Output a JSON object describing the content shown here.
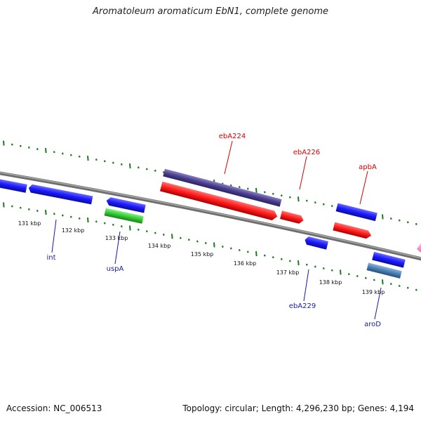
{
  "title": "Aromatoleum aromaticum EbN1, complete genome",
  "footer": {
    "accession": "Accession: NC_006513",
    "stats": "Topology: circular; Length: 4,296,230 bp; Genes: 4,194"
  },
  "colors": {
    "backbone": "#8c8c8c",
    "tick": "#1e7a1e",
    "blue_gene": "#1a1aff",
    "red_gene": "#ff1a1a",
    "purple_gene": "#4b3f8f",
    "green_gene": "#33cc33",
    "steel_gene": "#4a7fb5",
    "label_blue": "#1a1aaa",
    "label_red": "#d40000"
  },
  "tick_labels": [
    "131 kbp",
    "132 kbp",
    "133 kbp",
    "134 kbp",
    "135 kbp",
    "136 kbp",
    "137 kbp",
    "138 kbp",
    "139 kbp"
  ],
  "gene_labels": [
    "ebA224",
    "ebA226",
    "apbA",
    "int",
    "uspA",
    "ebA229",
    "aroD"
  ]
}
